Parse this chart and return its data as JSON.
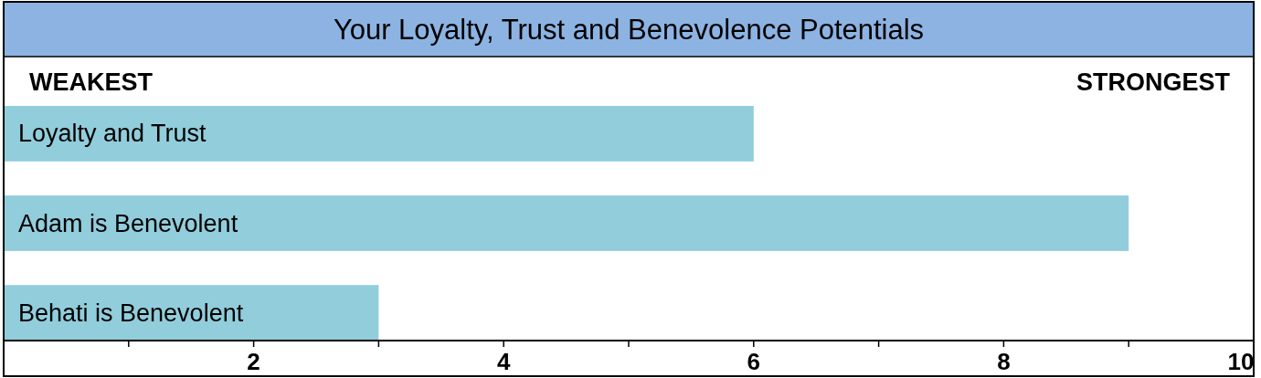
{
  "chart_data": {
    "type": "bar",
    "orientation": "horizontal",
    "title": "Your Loyalty, Trust and Benevolence Potentials",
    "categories": [
      "Loyalty and Trust",
      "Adam is Benevolent",
      "Behati is Benevolent"
    ],
    "values": [
      6,
      9,
      3
    ],
    "color": "#92cddc",
    "xlim": [
      0,
      10
    ],
    "xticks": [
      {
        "value": 1,
        "label": null
      },
      2,
      {
        "value": 3,
        "label": null
      },
      4,
      {
        "value": 5,
        "label": null
      },
      6,
      {
        "value": 7,
        "label": null
      },
      8,
      {
        "value": 9,
        "label": null
      },
      10
    ],
    "annotations": [
      "WEAKEST",
      "STRONGEST"
    ],
    "grid": false
  }
}
